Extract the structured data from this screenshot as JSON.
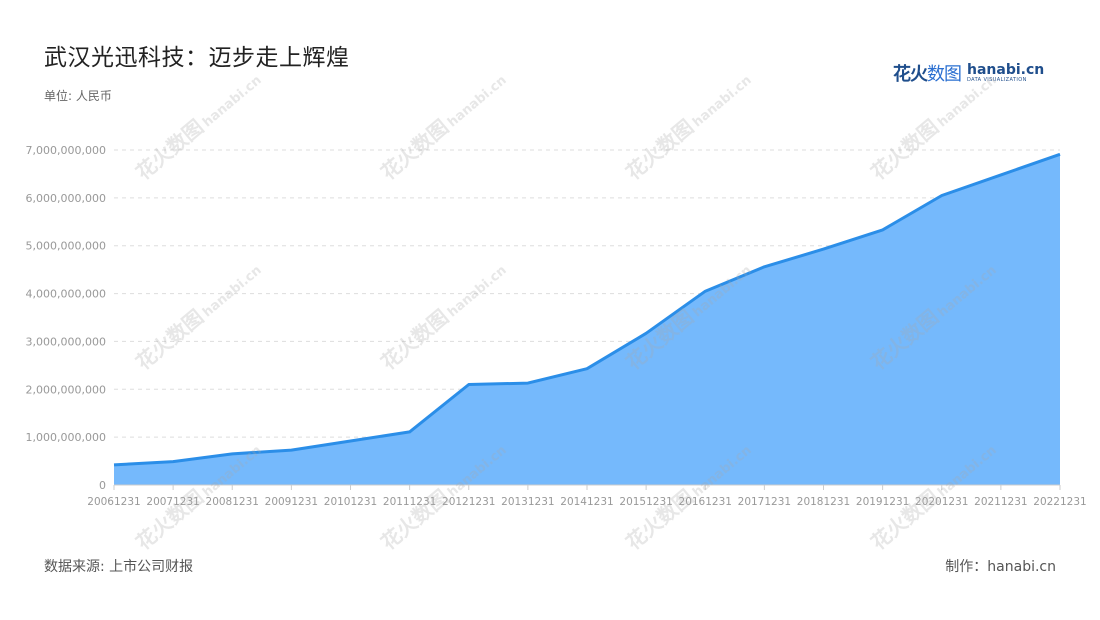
{
  "title": "武汉光迅科技：迈步走上辉煌",
  "unit_label": "单位: 人民币",
  "source_label": "数据来源: 上市公司财报",
  "credit_label": "制作：hanabi.cn",
  "logo": {
    "cn_bold": "花火",
    "cn_light": "数图",
    "en": "hanabi.cn",
    "en_sub": "DATA VISUALIZATION"
  },
  "colors": {
    "line": "#2b8ee8",
    "area": "#75b9fc",
    "grid": "#dddddd",
    "axis_text": "#999999"
  },
  "chart_data": {
    "type": "area",
    "title": "武汉光迅科技：迈步走上辉煌",
    "ylabel": "单位: 人民币",
    "grid": true,
    "ylim": [
      0,
      7000000000
    ],
    "yticks": [
      0,
      1000000000,
      2000000000,
      3000000000,
      4000000000,
      5000000000,
      6000000000,
      7000000000
    ],
    "ytick_labels": [
      "0",
      "1,000,000,000",
      "2,000,000,000",
      "3,000,000,000",
      "4,000,000,000",
      "5,000,000,000",
      "6,000,000,000",
      "7,000,000,000"
    ],
    "categories": [
      "20061231",
      "20071231",
      "20081231",
      "20091231",
      "20101231",
      "20111231",
      "20121231",
      "20131231",
      "20141231",
      "20151231",
      "20161231",
      "20171231",
      "20181231",
      "20191231",
      "20201231",
      "20211231",
      "20221231"
    ],
    "series": [
      {
        "values": [
          420000000,
          490000000,
          650000000,
          730000000,
          920000000,
          1110000000,
          2100000000,
          2130000000,
          2430000000,
          3170000000,
          4050000000,
          4560000000,
          4930000000,
          5330000000,
          6050000000,
          6480000000,
          6910000000
        ]
      }
    ]
  }
}
